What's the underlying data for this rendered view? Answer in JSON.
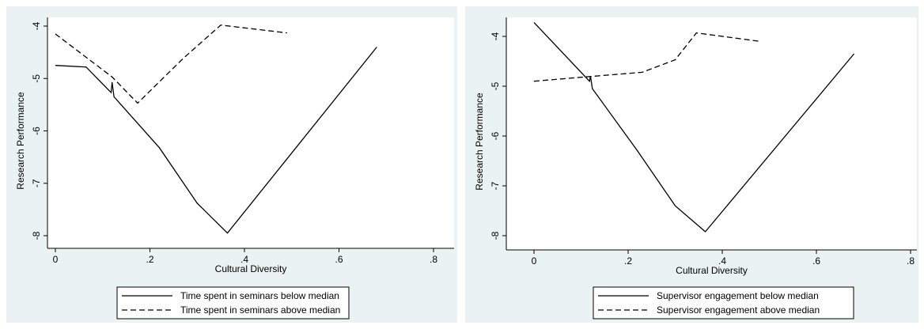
{
  "colors": {
    "panel_background": "#eaf2f3",
    "plot_background": "#ffffff",
    "line": "#000000"
  },
  "chart_data": [
    {
      "type": "line",
      "xlabel": "Cultural Diversity",
      "ylabel": "Research Performance",
      "xlim": [
        0,
        0.8
      ],
      "ylim": [
        -8,
        -4
      ],
      "xticks": [
        {
          "value": 0,
          "label": "0"
        },
        {
          "value": 0.2,
          "label": ".2"
        },
        {
          "value": 0.4,
          "label": ".4"
        },
        {
          "value": 0.6,
          "label": ".6"
        },
        {
          "value": 0.8,
          "label": ".8"
        }
      ],
      "yticks": [
        {
          "value": -4,
          "label": "-4"
        },
        {
          "value": -5,
          "label": "-5"
        },
        {
          "value": -6,
          "label": "-6"
        },
        {
          "value": -7,
          "label": "-7"
        },
        {
          "value": -8,
          "label": "-8"
        }
      ],
      "grid": false,
      "legend_position": "bottom",
      "series": [
        {
          "name": "Time spent in seminars below median",
          "style": "solid",
          "x": [
            0,
            0.065,
            0.118,
            0.12,
            0.124,
            0.22,
            0.3,
            0.364,
            0.68
          ],
          "y": [
            -4.75,
            -4.78,
            -5.27,
            -5.07,
            -5.35,
            -6.32,
            -7.38,
            -7.95,
            -4.4
          ]
        },
        {
          "name": "Time spent in seminars above median",
          "style": "dashed",
          "x": [
            0,
            0.12,
            0.174,
            0.27,
            0.35,
            0.49
          ],
          "y": [
            -4.15,
            -4.97,
            -5.47,
            -4.62,
            -3.98,
            -4.13
          ]
        }
      ]
    },
    {
      "type": "line",
      "xlabel": "Cultural Diversity",
      "ylabel": "Research Performance",
      "xlim": [
        0,
        0.8
      ],
      "ylim": [
        -8,
        -4
      ],
      "xticks": [
        {
          "value": 0,
          "label": "0"
        },
        {
          "value": 0.2,
          "label": ".2"
        },
        {
          "value": 0.4,
          "label": ".4"
        },
        {
          "value": 0.6,
          "label": ".6"
        },
        {
          "value": 0.8,
          "label": ".8"
        }
      ],
      "yticks": [
        {
          "value": -4,
          "label": "-4"
        },
        {
          "value": -5,
          "label": "-5"
        },
        {
          "value": -6,
          "label": "-6"
        },
        {
          "value": -7,
          "label": "-7"
        },
        {
          "value": -8,
          "label": "-8"
        }
      ],
      "grid": false,
      "legend_position": "bottom",
      "series": [
        {
          "name": "Supervisor engagement below median",
          "style": "solid",
          "x": [
            0,
            0.118,
            0.12,
            0.124,
            0.22,
            0.3,
            0.364,
            0.68
          ],
          "y": [
            -3.72,
            -4.9,
            -4.8,
            -5.05,
            -6.3,
            -7.4,
            -7.92,
            -4.35
          ]
        },
        {
          "name": "Supervisor engagement above median",
          "style": "dashed",
          "x": [
            0,
            0.1,
            0.23,
            0.3,
            0.345,
            0.48
          ],
          "y": [
            -4.9,
            -4.82,
            -4.72,
            -4.47,
            -3.93,
            -4.1
          ]
        }
      ]
    }
  ]
}
